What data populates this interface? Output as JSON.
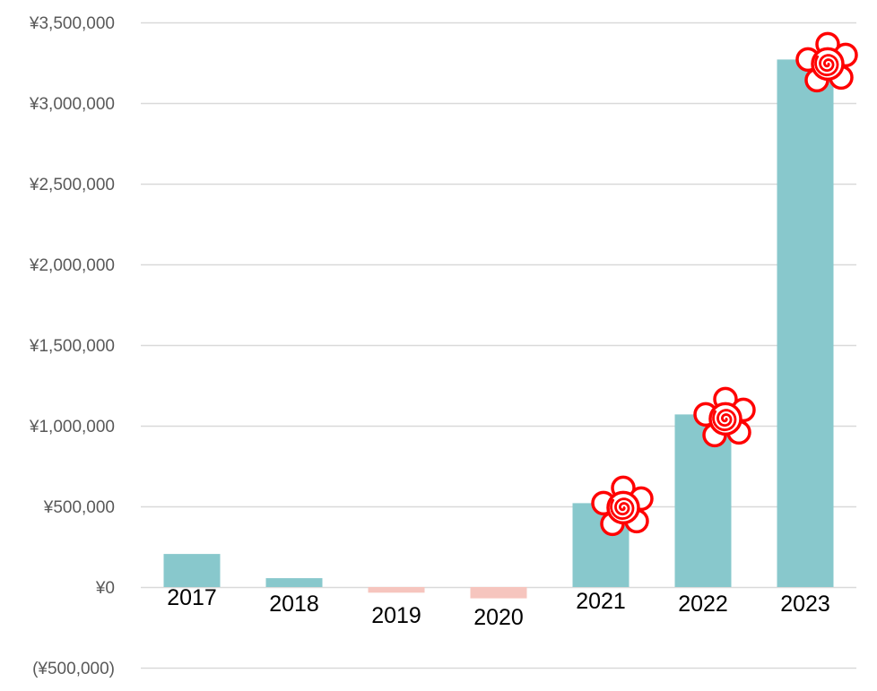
{
  "chart_data": {
    "type": "bar",
    "title": "",
    "xlabel": "",
    "ylabel": "",
    "categories": [
      "2017",
      "2018",
      "2019",
      "2020",
      "2021",
      "2022",
      "2023"
    ],
    "values": [
      205000,
      55000,
      -35000,
      -70000,
      520000,
      1070000,
      3270000
    ],
    "ylim": [
      -500000,
      3500000
    ],
    "yticks": [
      -500000,
      0,
      500000,
      1000000,
      1500000,
      2000000,
      2500000,
      3000000,
      3500000
    ],
    "ytick_labels": [
      "(¥500,000)",
      "¥0",
      "¥500,000",
      "¥1,000,000",
      "¥1,500,000",
      "¥2,000,000",
      "¥2,500,000",
      "¥3,000,000",
      "¥3,500,000"
    ],
    "grid": true,
    "legend": "none",
    "colors": {
      "positive": "#88C8CC",
      "negative": "#F6C5BE",
      "grid": "#D9D9D9",
      "stamp": "#FF0000"
    },
    "stamped_categories": [
      "2021",
      "2022",
      "2023"
    ],
    "stamp_icon": "hanamaru-flower-stamp-icon"
  }
}
